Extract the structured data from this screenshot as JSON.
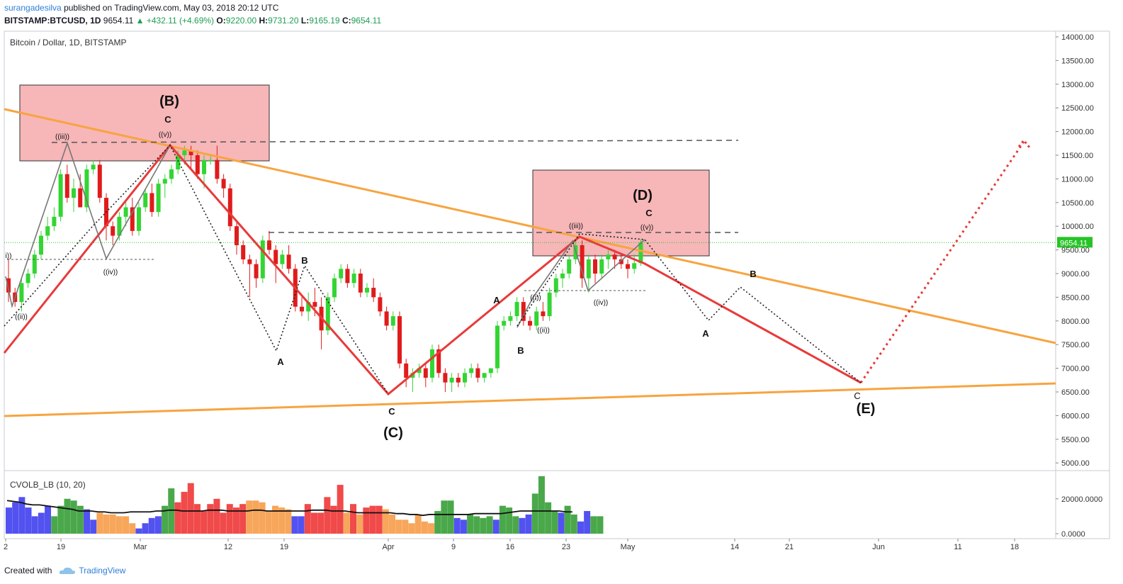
{
  "header": {
    "author": "surangadesilva",
    "published": "published on TradingView.com, May 03, 2018 20:12 UTC",
    "symbol": "BITSTAMP:BTCUSD, 1D",
    "last": "9654.11",
    "change": "+432.11 (+4.69%)",
    "o_label": "O:",
    "o": "9220.00",
    "h_label": "H:",
    "h": "9731.20",
    "l_label": "L:",
    "l": "9165.19",
    "c_label": "C:",
    "c": "9654.11"
  },
  "legend": {
    "main": "Bitcoin / Dollar, 1D, BITSTAMP",
    "indicator": "CVOLB_LB (10, 20)"
  },
  "footer": {
    "created": "Created with",
    "brand": "TradingView"
  },
  "colors": {
    "bull": "#33d533",
    "bear": "#e01b1b",
    "trendline": "#f7a440",
    "wave": "#e83a3a",
    "zone": "#f6a9ab",
    "price_tag": "#27c427"
  },
  "chart_data": [
    {
      "type": "candlestick",
      "ylim": [
        4800,
        14100
      ],
      "y_ticks": [
        "14000.00",
        "13500.00",
        "13000.00",
        "12500.00",
        "12000.00",
        "11500.00",
        "11000.00",
        "10500.00",
        "10000.00",
        "9500.00",
        "9000.00",
        "8500.00",
        "8000.00",
        "7500.00",
        "7000.00",
        "6500.00",
        "6000.00",
        "5500.00",
        "5000.00"
      ],
      "x_ticks": [
        "2",
        "19",
        "Mar",
        "12",
        "19",
        "Apr",
        "9",
        "16",
        "23",
        "May",
        "14",
        "21",
        "Jun",
        "11",
        "18"
      ],
      "last_price_label": "9654.11",
      "candles": [
        [
          8900,
          9300,
          8400,
          8600
        ],
        [
          8600,
          8700,
          8300,
          8400
        ],
        [
          8400,
          8900,
          8200,
          8800
        ],
        [
          8800,
          9100,
          8700,
          9000
        ],
        [
          9000,
          9500,
          8900,
          9400
        ],
        [
          9400,
          9900,
          9300,
          9800
        ],
        [
          9800,
          10200,
          9700,
          10000
        ],
        [
          10000,
          10400,
          9900,
          10200
        ],
        [
          10200,
          11200,
          10100,
          11100
        ],
        [
          11100,
          11300,
          10500,
          10600
        ],
        [
          10600,
          11000,
          10300,
          10800
        ],
        [
          10800,
          11100,
          10400,
          10400
        ],
        [
          10400,
          11300,
          10300,
          11200
        ],
        [
          11200,
          11400,
          11100,
          11300
        ],
        [
          11300,
          11400,
          10500,
          10600
        ],
        [
          10600,
          10700,
          9700,
          10000
        ],
        [
          10000,
          10100,
          9600,
          9800
        ],
        [
          9800,
          10300,
          9700,
          10200
        ],
        [
          10200,
          10500,
          10000,
          10400
        ],
        [
          10400,
          10600,
          9800,
          9900
        ],
        [
          9900,
          10500,
          9800,
          10400
        ],
        [
          10400,
          10800,
          10300,
          10700
        ],
        [
          10700,
          10900,
          10200,
          10300
        ],
        [
          10300,
          11000,
          10200,
          10900
        ],
        [
          10900,
          11100,
          10600,
          11000
        ],
        [
          11000,
          11300,
          10900,
          11200
        ],
        [
          11200,
          11600,
          11100,
          11500
        ],
        [
          11500,
          11700,
          11300,
          11600
        ],
        [
          11600,
          11700,
          11200,
          11500
        ],
        [
          11500,
          11600,
          11000,
          11100
        ],
        [
          11100,
          11500,
          10800,
          11400
        ],
        [
          11400,
          11500,
          11300,
          11400
        ],
        [
          11400,
          11700,
          10900,
          11000
        ],
        [
          11000,
          11100,
          10600,
          10800
        ],
        [
          10800,
          10900,
          9900,
          10000
        ],
        [
          10000,
          10100,
          9400,
          9600
        ],
        [
          9600,
          9700,
          9200,
          9300
        ],
        [
          9300,
          9400,
          8500,
          9200
        ],
        [
          9200,
          9300,
          8700,
          8900
        ],
        [
          8900,
          9800,
          8800,
          9700
        ],
        [
          9700,
          9900,
          9400,
          9500
        ],
        [
          9500,
          9600,
          8800,
          9200
        ],
        [
          9200,
          9500,
          9100,
          9400
        ],
        [
          9400,
          9600,
          9000,
          9100
        ],
        [
          9100,
          9200,
          8200,
          8300
        ],
        [
          8300,
          8500,
          8100,
          8200
        ],
        [
          8200,
          8600,
          8000,
          8400
        ],
        [
          8400,
          8700,
          8100,
          8300
        ],
        [
          8300,
          8500,
          7400,
          7800
        ],
        [
          7800,
          8600,
          7700,
          8500
        ],
        [
          8500,
          9000,
          8400,
          8900
        ],
        [
          8900,
          9200,
          8800,
          9100
        ],
        [
          9100,
          9200,
          8700,
          8800
        ],
        [
          8800,
          9100,
          8700,
          9000
        ],
        [
          9000,
          9100,
          8500,
          8600
        ],
        [
          8600,
          8800,
          8500,
          8700
        ],
        [
          8700,
          8900,
          8400,
          8500
        ],
        [
          8500,
          8600,
          8100,
          8200
        ],
        [
          8200,
          8300,
          7800,
          7900
        ],
        [
          7900,
          8200,
          7800,
          8100
        ],
        [
          8100,
          8200,
          7000,
          7100
        ],
        [
          7100,
          7200,
          6600,
          6800
        ],
        [
          6800,
          7000,
          6500,
          6900
        ],
        [
          6900,
          7100,
          6800,
          7000
        ],
        [
          7000,
          7100,
          6600,
          6800
        ],
        [
          6800,
          7500,
          6700,
          7400
        ],
        [
          7400,
          7500,
          6800,
          6900
        ],
        [
          6900,
          7000,
          6500,
          6700
        ],
        [
          6700,
          6900,
          6500,
          6800
        ],
        [
          6800,
          6900,
          6600,
          6700
        ],
        [
          6700,
          7000,
          6600,
          6900
        ],
        [
          6900,
          7100,
          6800,
          7000
        ],
        [
          7000,
          7100,
          6700,
          6800
        ],
        [
          6800,
          6900,
          6700,
          6900
        ],
        [
          6900,
          7000,
          6800,
          7000
        ],
        [
          7000,
          8000,
          6900,
          7900
        ],
        [
          7900,
          8100,
          7800,
          8000
        ],
        [
          8000,
          8200,
          7900,
          8100
        ],
        [
          8100,
          8500,
          8000,
          8400
        ],
        [
          8400,
          8500,
          7900,
          8000
        ],
        [
          8000,
          8100,
          7800,
          7900
        ],
        [
          7900,
          8300,
          7800,
          8200
        ],
        [
          8200,
          8400,
          8000,
          8100
        ],
        [
          8100,
          8700,
          8000,
          8600
        ],
        [
          8600,
          9000,
          8500,
          8900
        ],
        [
          8900,
          9100,
          8700,
          9000
        ],
        [
          9000,
          9400,
          8900,
          9300
        ],
        [
          9300,
          9700,
          9200,
          9600
        ],
        [
          9600,
          9700,
          8700,
          8900
        ],
        [
          8900,
          9400,
          8600,
          9300
        ],
        [
          9300,
          9400,
          8800,
          9000
        ],
        [
          9000,
          9400,
          8900,
          9300
        ],
        [
          9300,
          9500,
          9100,
          9400
        ],
        [
          9400,
          9500,
          9100,
          9300
        ],
        [
          9300,
          9400,
          9100,
          9200
        ],
        [
          9200,
          9300,
          8900,
          9100
        ],
        [
          9100,
          9400,
          9000,
          9220
        ],
        [
          9220,
          9731,
          9165,
          9654
        ]
      ],
      "trendlines": "orange converging triangle",
      "zones": [
        "(B)",
        "(D)"
      ],
      "wave_labels": [
        "((iii))",
        "((v))",
        "((ii))",
        "((iv))",
        "i))",
        "C",
        "(B)",
        "A",
        "B",
        "C",
        "(C)",
        "A",
        "B",
        "((i))",
        "((ii))",
        "((iii))",
        "((iv))",
        "((v))",
        "(D)",
        "C",
        "A",
        "B",
        "C",
        "(E)"
      ]
    },
    {
      "type": "bar",
      "name": "CVOLB_LB (10, 20)",
      "ylim": [
        0,
        30000
      ],
      "y_ticks": [
        "20000.0000",
        "0.0000"
      ],
      "values": [
        [
          15000,
          "b"
        ],
        [
          18000,
          "b"
        ],
        [
          21000,
          "b"
        ],
        [
          15000,
          "b"
        ],
        [
          10000,
          "b"
        ],
        [
          12000,
          "b"
        ],
        [
          16000,
          "b"
        ],
        [
          10000,
          "g"
        ],
        [
          16000,
          "g"
        ],
        [
          20000,
          "g"
        ],
        [
          19000,
          "g"
        ],
        [
          16000,
          "g"
        ],
        [
          14000,
          "b"
        ],
        [
          8000,
          "b"
        ],
        [
          12000,
          "o"
        ],
        [
          11000,
          "o"
        ],
        [
          11000,
          "o"
        ],
        [
          10000,
          "o"
        ],
        [
          10000,
          "o"
        ],
        [
          6000,
          "o"
        ],
        [
          3000,
          "b"
        ],
        [
          6000,
          "b"
        ],
        [
          9000,
          "b"
        ],
        [
          10000,
          "b"
        ],
        [
          16000,
          "g"
        ],
        [
          26000,
          "g"
        ],
        [
          18000,
          "r"
        ],
        [
          24000,
          "r"
        ],
        [
          29000,
          "r"
        ],
        [
          17000,
          "r"
        ],
        [
          13000,
          "r"
        ],
        [
          17000,
          "r"
        ],
        [
          20000,
          "r"
        ],
        [
          12000,
          "r"
        ],
        [
          17000,
          "r"
        ],
        [
          15000,
          "r"
        ],
        [
          17000,
          "r"
        ],
        [
          19000,
          "o"
        ],
        [
          19000,
          "o"
        ],
        [
          18000,
          "o"
        ],
        [
          13000,
          "o"
        ],
        [
          16000,
          "o"
        ],
        [
          15000,
          "o"
        ],
        [
          14000,
          "o"
        ],
        [
          10000,
          "b"
        ],
        [
          10000,
          "b"
        ],
        [
          17000,
          "r"
        ],
        [
          12000,
          "r"
        ],
        [
          12000,
          "r"
        ],
        [
          21000,
          "r"
        ],
        [
          16000,
          "r"
        ],
        [
          28000,
          "r"
        ],
        [
          12000,
          "o"
        ],
        [
          17000,
          "r"
        ],
        [
          11000,
          "o"
        ],
        [
          15000,
          "r"
        ],
        [
          16000,
          "r"
        ],
        [
          16000,
          "r"
        ],
        [
          14000,
          "o"
        ],
        [
          11000,
          "o"
        ],
        [
          8000,
          "o"
        ],
        [
          8000,
          "o"
        ],
        [
          6000,
          "o"
        ],
        [
          11000,
          "o"
        ],
        [
          7000,
          "o"
        ],
        [
          6000,
          "o"
        ],
        [
          13000,
          "g"
        ],
        [
          19000,
          "g"
        ],
        [
          19000,
          "g"
        ],
        [
          9000,
          "b"
        ],
        [
          8000,
          "b"
        ],
        [
          11000,
          "g"
        ],
        [
          10000,
          "g"
        ],
        [
          9000,
          "g"
        ],
        [
          10000,
          "g"
        ],
        [
          8000,
          "b"
        ],
        [
          16000,
          "g"
        ],
        [
          15000,
          "g"
        ],
        [
          10000,
          "g"
        ],
        [
          9000,
          "b"
        ],
        [
          11000,
          "b"
        ],
        [
          23000,
          "g"
        ],
        [
          33000,
          "g"
        ],
        [
          18000,
          "g"
        ],
        [
          13000,
          "g"
        ],
        [
          12000,
          "b"
        ],
        [
          16000,
          "g"
        ],
        [
          11000,
          "g"
        ],
        [
          7000,
          "b"
        ],
        [
          13000,
          "b"
        ],
        [
          10000,
          "g"
        ],
        [
          10000,
          "g"
        ]
      ],
      "ma": [
        19000,
        18500,
        18000,
        17000,
        16500,
        16500,
        16000,
        15500,
        15000,
        14500,
        14000,
        13000,
        13000,
        13000,
        12500,
        12500,
        12000,
        12000,
        12000,
        12500,
        12500,
        12500,
        12500,
        13000,
        13000,
        13500,
        13500,
        13000,
        13000,
        13000,
        13000,
        13500,
        13500,
        13500,
        13000,
        13000,
        13000,
        13000,
        13500,
        13500,
        13000,
        13000,
        13000,
        13000,
        13000,
        13000,
        13000,
        13500,
        13500,
        13500,
        13000,
        13000,
        13000,
        12500,
        12000,
        12000,
        12000,
        12000,
        12000,
        12000,
        11500,
        11500,
        11000,
        11000,
        10500,
        11000,
        11000,
        11000,
        11000,
        11000,
        11000,
        11000,
        11500,
        11500,
        11500,
        11500,
        11500,
        12000,
        12500,
        13000,
        13000,
        13000,
        13000,
        13000,
        13000,
        13000,
        12500,
        12500
      ]
    }
  ]
}
